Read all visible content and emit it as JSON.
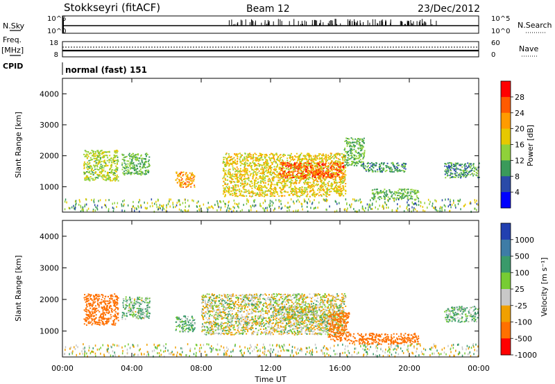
{
  "header": {
    "station": "Stokkseyri (fitACF)",
    "beam": "Beam 12",
    "date": "23/Dec/2012"
  },
  "top_panel": {
    "left_label": "N.Sky",
    "right_label": "N.Search",
    "tick_high": "10^5",
    "tick_low": "10^0",
    "search_line_color": "#000000"
  },
  "freq_panel": {
    "left_label_1": "Freq.",
    "left_label_2": "[MHz]",
    "right_label": "Nave",
    "left_ticks": [
      "18",
      "8"
    ],
    "right_ticks": [
      "60",
      "0"
    ]
  },
  "cpid_row": {
    "label": "CPID",
    "value": "normal (fast) 151"
  },
  "power_panel": {
    "ylabel": "Slant Range [km]",
    "yticks": [
      "4000",
      "3000",
      "2000",
      "1000"
    ],
    "colorbar_label": "Power [dB]",
    "colorbar_ticks": [
      "28",
      "24",
      "20",
      "16",
      "12",
      "8",
      "4"
    ],
    "colorbar_colors": [
      "#ff0000",
      "#ff5a00",
      "#ff9b00",
      "#e6c800",
      "#8fd13a",
      "#3a9a5a",
      "#2a4aa8",
      "#0000ff"
    ]
  },
  "velocity_panel": {
    "ylabel": "Slant Range [km]",
    "yticks": [
      "4000",
      "3000",
      "2000",
      "1000"
    ],
    "colorbar_label": "Velocity [m s⁻¹]",
    "colorbar_ticks": [
      "1000",
      "500",
      "100",
      "25",
      "-25",
      "-100",
      "-500",
      "-1000"
    ],
    "colorbar_colors": [
      "#2240b0",
      "#3e7ca6",
      "#3a9a6a",
      "#77cc33",
      "#c8c8c8",
      "#f0a000",
      "#ff7000",
      "#ff0000"
    ]
  },
  "xaxis": {
    "ticks": [
      "00:00",
      "04:00",
      "08:00",
      "12:00",
      "16:00",
      "20:00",
      "00:00"
    ],
    "label": "Time UT"
  },
  "chart_data": [
    {
      "type": "heatmap",
      "title": "Power",
      "ylabel": "Slant Range [km]",
      "xlabel": "Time UT",
      "x_range_hours_utc": [
        0,
        24
      ],
      "ylim": [
        180,
        4500
      ],
      "zlabel": "Power [dB]",
      "zlim": [
        0,
        30
      ],
      "regions": [
        {
          "t_start": 1.2,
          "t_end": 3.2,
          "r_min": 1200,
          "r_max": 2200,
          "value_db": 15
        },
        {
          "t_start": 3.4,
          "t_end": 5.0,
          "r_min": 1400,
          "r_max": 2100,
          "value_db": 12
        },
        {
          "t_start": 6.5,
          "t_end": 7.6,
          "r_min": 1000,
          "r_max": 1500,
          "value_db": 22
        },
        {
          "t_start": 9.2,
          "t_end": 16.3,
          "r_min": 700,
          "r_max": 2100,
          "value_db": 18
        },
        {
          "t_start": 12.5,
          "t_end": 16.2,
          "r_min": 1300,
          "r_max": 1800,
          "value_db": 26
        },
        {
          "t_start": 16.2,
          "t_end": 17.4,
          "r_min": 1700,
          "r_max": 2600,
          "value_db": 12
        },
        {
          "t_start": 17.2,
          "t_end": 19.8,
          "r_min": 1500,
          "r_max": 1800,
          "value_db": 10
        },
        {
          "t_start": 17.8,
          "t_end": 20.5,
          "r_min": 600,
          "r_max": 950,
          "value_db": 12
        },
        {
          "t_start": 22.0,
          "t_end": 24.0,
          "r_min": 1300,
          "r_max": 1800,
          "value_db": 10
        }
      ]
    },
    {
      "type": "heatmap",
      "title": "Velocity",
      "ylabel": "Slant Range [km]",
      "xlabel": "Time UT",
      "x_range_hours_utc": [
        0,
        24
      ],
      "ylim": [
        180,
        4500
      ],
      "zlabel": "Velocity [m s⁻¹]",
      "zlim": [
        -1000,
        1000
      ],
      "regions": [
        {
          "t_start": 1.2,
          "t_end": 3.2,
          "r_min": 1200,
          "r_max": 2200,
          "value_ms": -300
        },
        {
          "t_start": 3.4,
          "t_end": 5.0,
          "r_min": 1400,
          "r_max": 2100,
          "value_ms": 50
        },
        {
          "t_start": 6.5,
          "t_end": 7.6,
          "r_min": 1000,
          "r_max": 1500,
          "value_ms": 80
        },
        {
          "t_start": 8.0,
          "t_end": 16.3,
          "r_min": 900,
          "r_max": 2200,
          "value_ms": 0
        },
        {
          "t_start": 12.5,
          "t_end": 16.2,
          "r_min": 1300,
          "r_max": 1800,
          "value_ms": 0
        },
        {
          "t_start": 15.3,
          "t_end": 16.5,
          "r_min": 700,
          "r_max": 1600,
          "value_ms": -400
        },
        {
          "t_start": 16.5,
          "t_end": 20.5,
          "r_min": 600,
          "r_max": 950,
          "value_ms": -200
        },
        {
          "t_start": 22.0,
          "t_end": 24.0,
          "r_min": 1300,
          "r_max": 1800,
          "value_ms": 60
        }
      ]
    }
  ]
}
